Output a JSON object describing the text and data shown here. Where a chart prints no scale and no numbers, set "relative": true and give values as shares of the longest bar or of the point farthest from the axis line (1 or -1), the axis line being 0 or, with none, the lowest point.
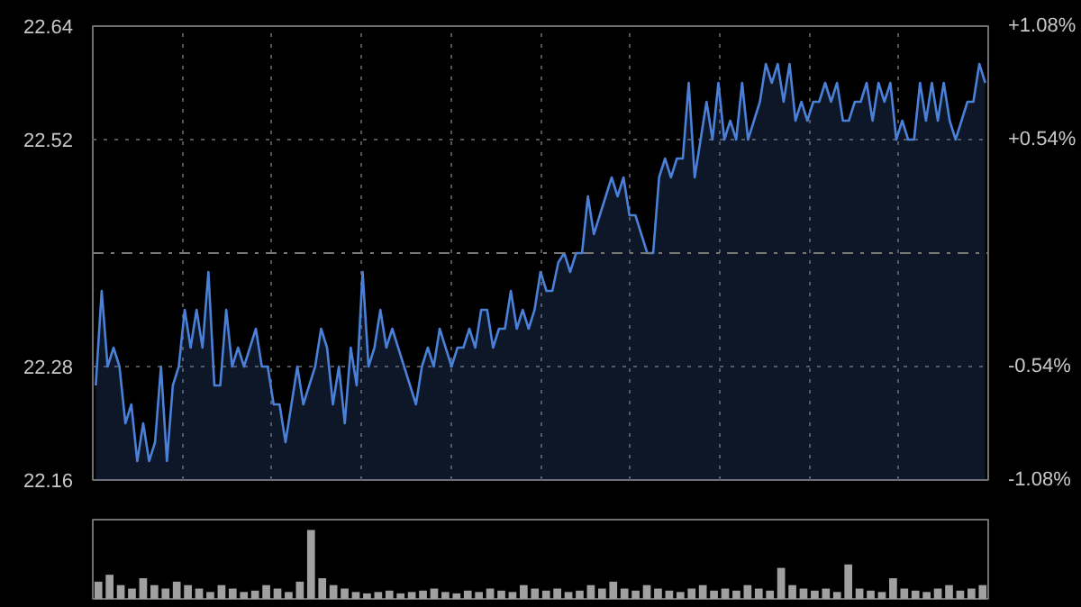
{
  "chart_data": [
    {
      "type": "area",
      "categories": [
        null,
        null,
        null,
        null,
        null,
        null,
        null,
        null,
        null,
        null,
        null,
        null,
        null,
        null,
        null,
        null,
        null,
        null,
        null,
        null,
        null,
        null,
        null,
        null,
        null,
        null,
        null,
        null,
        null,
        null,
        null,
        null,
        null,
        null,
        null,
        null,
        null,
        null,
        null,
        null,
        null,
        null,
        null,
        null,
        null,
        null,
        null,
        null,
        null,
        null,
        null,
        null,
        null,
        null,
        null,
        null,
        null,
        null,
        null,
        null,
        null,
        null,
        null,
        null,
        null,
        null,
        null,
        null,
        null,
        null,
        null,
        null,
        null,
        null,
        null,
        null,
        null,
        null,
        null,
        null,
        null,
        null,
        null,
        null,
        null,
        null,
        null,
        null,
        null,
        null,
        null,
        null,
        null,
        null,
        null,
        null,
        null,
        null,
        null,
        null,
        null,
        null,
        null,
        null,
        null,
        null,
        null,
        null,
        null,
        null,
        null,
        null,
        null,
        null,
        null,
        null,
        null,
        null,
        null,
        null,
        null,
        null,
        null,
        null,
        null,
        null,
        null,
        null,
        null,
        null,
        null,
        null,
        null,
        null,
        null,
        null,
        null,
        null,
        null,
        null,
        null,
        null,
        null,
        null,
        null,
        null,
        null,
        null,
        null,
        null,
        null
      ],
      "ylim": [
        22.16,
        22.64
      ],
      "yticks": [
        22.16,
        22.28,
        22.52,
        22.64
      ],
      "y2lim": [
        -1.08,
        1.08
      ],
      "y2ticks": [
        {
          "value": -1.08,
          "label": "-1.08%"
        },
        {
          "value": -0.54,
          "label": "-0.54%"
        },
        {
          "value": 0.54,
          "label": "+0.54%"
        },
        {
          "value": 1.08,
          "label": "+1.08%"
        }
      ],
      "ref_lines": [
        {
          "axis": "y",
          "value": 22.4,
          "color": "#777777",
          "line_style": "dashdot"
        }
      ],
      "grid": true,
      "tick_labels": "y",
      "series": [
        {
          "color": "#4a80d8",
          "values": [
            22.26,
            22.36,
            22.28,
            22.3,
            22.28,
            22.22,
            22.24,
            22.18,
            22.22,
            22.18,
            22.2,
            22.28,
            22.18,
            22.26,
            22.28,
            22.34,
            22.3,
            22.34,
            22.3,
            22.38,
            22.26,
            22.26,
            22.34,
            22.28,
            22.3,
            22.28,
            22.3,
            22.32,
            22.28,
            22.28,
            22.24,
            22.24,
            22.2,
            22.24,
            22.28,
            22.24,
            22.26,
            22.28,
            22.32,
            22.3,
            22.24,
            22.28,
            22.22,
            22.3,
            22.26,
            22.38,
            22.28,
            22.3,
            22.34,
            22.3,
            22.32,
            22.3,
            22.28,
            22.26,
            22.24,
            22.28,
            22.3,
            22.28,
            22.32,
            22.3,
            22.28,
            22.3,
            22.3,
            22.32,
            22.3,
            22.34,
            22.34,
            22.3,
            22.32,
            22.32,
            22.36,
            22.32,
            22.34,
            22.32,
            22.34,
            22.38,
            22.36,
            22.36,
            22.39,
            22.4,
            22.38,
            22.4,
            22.4,
            22.46,
            22.42,
            22.44,
            22.46,
            22.48,
            22.46,
            22.48,
            22.44,
            22.44,
            22.42,
            22.4,
            22.4,
            22.48,
            22.5,
            22.48,
            22.5,
            22.5,
            22.58,
            22.48,
            22.52,
            22.56,
            22.52,
            22.58,
            22.52,
            22.54,
            22.52,
            22.58,
            22.52,
            22.54,
            22.56,
            22.6,
            22.58,
            22.6,
            22.56,
            22.6,
            22.54,
            22.56,
            22.54,
            22.56,
            22.56,
            22.58,
            22.56,
            22.58,
            22.54,
            22.54,
            22.56,
            22.56,
            22.58,
            22.54,
            22.58,
            22.56,
            22.58,
            22.52,
            22.54,
            22.52,
            22.52,
            22.58,
            22.54,
            22.58,
            22.54,
            22.58,
            22.54,
            22.52,
            22.54,
            22.56,
            22.56,
            22.6,
            22.58
          ]
        }
      ]
    },
    {
      "type": "bar",
      "relative": true,
      "color": "#a0a0a0",
      "categories": [
        null,
        null,
        null,
        null,
        null,
        null,
        null,
        null,
        null,
        null,
        null,
        null,
        null,
        null,
        null,
        null,
        null,
        null,
        null,
        null,
        null,
        null,
        null,
        null,
        null,
        null,
        null,
        null,
        null,
        null,
        null,
        null,
        null,
        null,
        null,
        null,
        null,
        null,
        null,
        null,
        null,
        null,
        null,
        null,
        null,
        null,
        null,
        null,
        null,
        null,
        null,
        null,
        null,
        null,
        null,
        null,
        null,
        null,
        null,
        null,
        null,
        null,
        null,
        null,
        null,
        null,
        null,
        null,
        null,
        null,
        null,
        null,
        null,
        null,
        null,
        null,
        null,
        null,
        null,
        null
      ],
      "values": [
        0.25,
        0.35,
        0.2,
        0.15,
        0.3,
        0.2,
        0.15,
        0.25,
        0.2,
        0.15,
        0.1,
        0.2,
        0.15,
        0.1,
        0.12,
        0.2,
        0.15,
        0.1,
        0.25,
        1,
        0.3,
        0.2,
        0.15,
        0.1,
        0.08,
        0.1,
        0.12,
        0.08,
        0.1,
        0.12,
        0.15,
        0.1,
        0.08,
        0.12,
        0.1,
        0.15,
        0.12,
        0.1,
        0.2,
        0.15,
        0.12,
        0.15,
        0.1,
        0.12,
        0.2,
        0.15,
        0.25,
        0.15,
        0.12,
        0.2,
        0.15,
        0.12,
        0.1,
        0.15,
        0.2,
        0.12,
        0.15,
        0.12,
        0.2,
        0.15,
        0.12,
        0.45,
        0.2,
        0.15,
        0.12,
        0.15,
        0.1,
        0.5,
        0.15,
        0.12,
        0.1,
        0.3,
        0.15,
        0.12,
        0.1,
        0.15,
        0.2,
        0.12,
        0.15,
        0.2
      ]
    }
  ]
}
